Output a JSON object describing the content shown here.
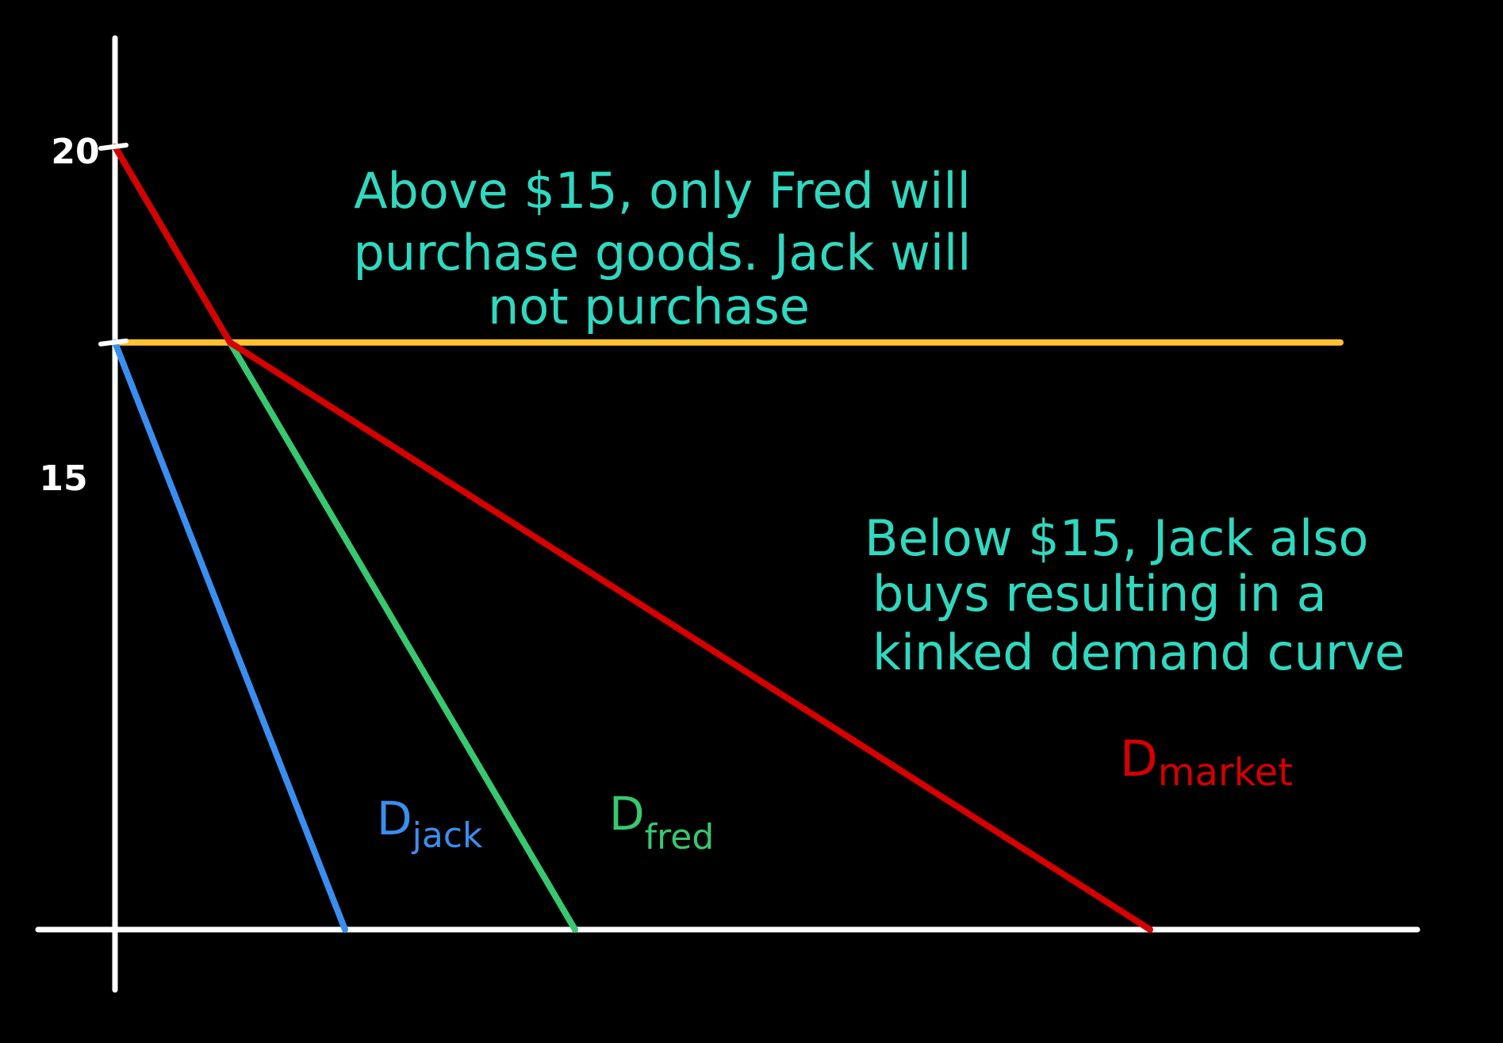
{
  "chart_data": {
    "type": "line",
    "title": "",
    "xlabel": "",
    "ylabel": "",
    "yticks": [
      {
        "value": 20,
        "label": "20"
      },
      {
        "value": 15,
        "label": "15"
      }
    ],
    "ylim": [
      0,
      20
    ],
    "grid": false,
    "series": [
      {
        "name": "jack",
        "label_main": "D",
        "label_sub": "jack",
        "color": "#3a8ef0",
        "points": [
          [
            0,
            15
          ],
          [
            1,
            0
          ]
        ]
      },
      {
        "name": "fred",
        "label_main": "D",
        "label_sub": "fred",
        "color": "#38c870",
        "points": [
          [
            0,
            20
          ],
          [
            2,
            0
          ]
        ]
      },
      {
        "name": "market",
        "label_main": "D",
        "label_sub": "market",
        "color": "#d40000",
        "points": [
          [
            0,
            20
          ],
          [
            0.5,
            15
          ],
          [
            4.5,
            0
          ]
        ]
      }
    ],
    "reference_lines": [
      {
        "orientation": "horizontal",
        "value": 15,
        "color": "#ffc130"
      }
    ],
    "annotations": [
      {
        "color": "#2fd9c0",
        "lines": [
          "Above $15, only Fred will",
          "purchase goods. Jack will",
          "not purchase"
        ]
      },
      {
        "color": "#2fd9c0",
        "lines": [
          "Below $15, Jack also",
          "buys resulting in a",
          "kinked demand curve"
        ]
      }
    ]
  }
}
